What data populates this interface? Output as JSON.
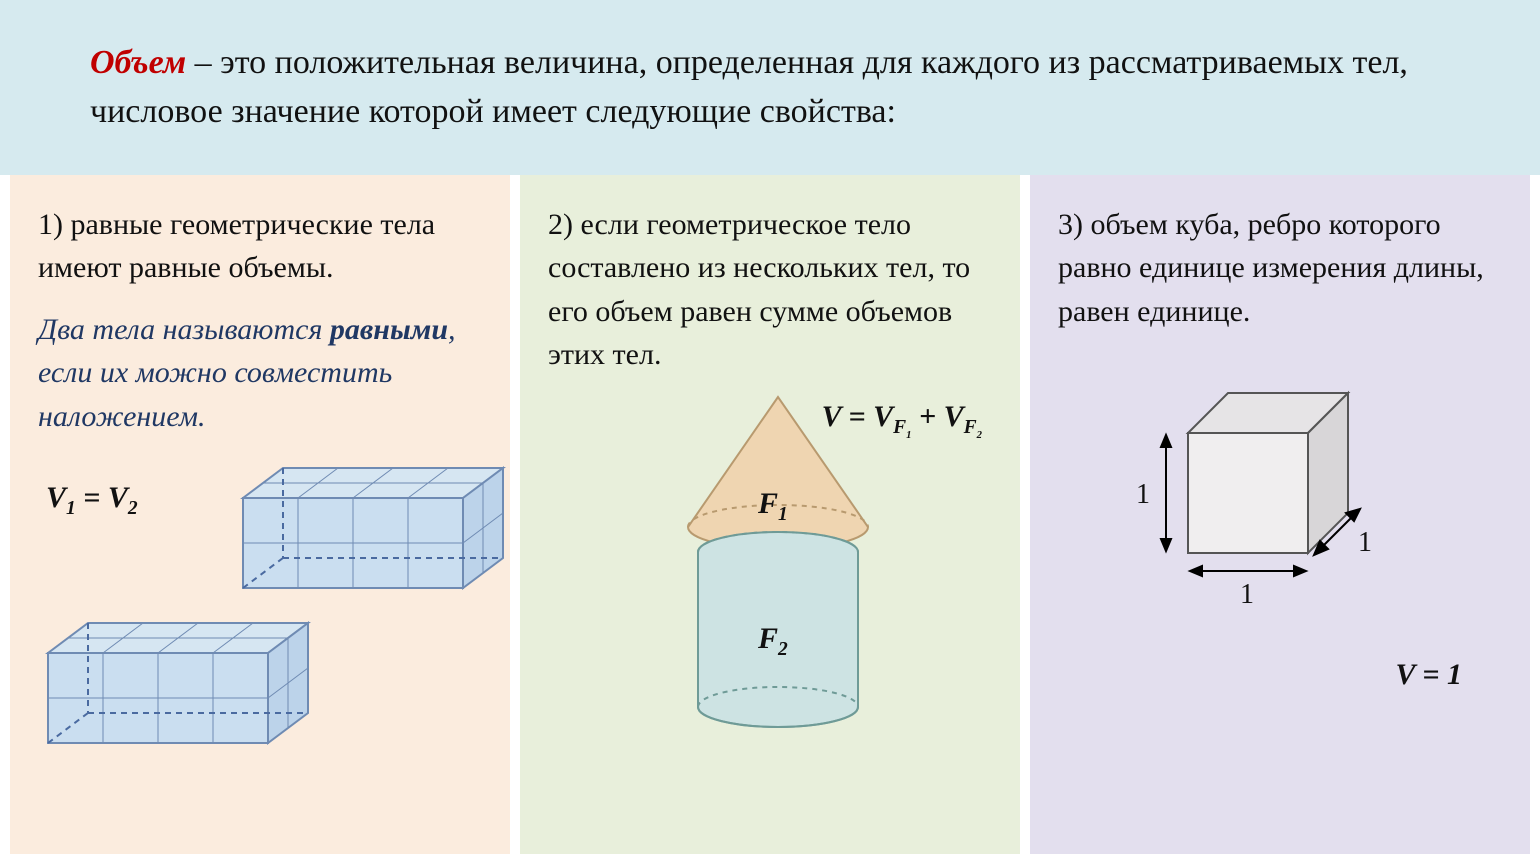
{
  "colors": {
    "header_bg": "#d6eaef",
    "col1_bg": "#fbecde",
    "col2_bg": "#e8efdb",
    "col3_bg": "#e3dfee",
    "term_color": "#c00000",
    "note_color": "#203864",
    "prism_fill": "#d6e6f2",
    "prism_stroke": "#6f8bb3",
    "prism_dash": "#4a6aa0",
    "cone_fill": "#efd5b1",
    "cone_stroke": "#7a9e94",
    "cyl_fill": "#cde3e3",
    "cyl_stroke": "#6f9b97",
    "cube_fill": "#f0eeef",
    "cube_side": "#d8d6d8",
    "cube_top": "#e6e4e6",
    "cube_stroke": "#555555"
  },
  "header": {
    "term": "Объем",
    "text_after": " – это положительная величина, определенная для каждого из рассматриваемых тел, числовое значение которой имеет следующие свойства:"
  },
  "col1": {
    "text": "1) равные геометрические тела имеют равные объемы.",
    "note_pre": "Два тела называются ",
    "note_em": "равными",
    "note_post": ", если их можно совместить наложением.",
    "formula_html": "<span class='formula'><span>V</span><span class='sub'>1</span> = <span>V</span><span class='sub'>2</span></span>"
  },
  "col2": {
    "text": "2) если геометрическое тело составлено из нескольких тел, то его объем равен сумме объемов этих тел.",
    "formula_html": "<span class='formula'>V = V<span class='sub'>F<span class='subsub'>1</span></span> + V<span class='sub'>F<span class='subsub'>2</span></span></span>",
    "f1_html": "<span class='formula'>F<span class='sub'>1</span></span>",
    "f2_html": "<span class='formula'>F<span class='sub'>2</span></span>"
  },
  "col3": {
    "text": "3) объем куба, ребро которого равно единице измерения длины, равен единице.",
    "formula_html": "<span class='formula'>V = 1</span>",
    "dim_label": "1"
  }
}
